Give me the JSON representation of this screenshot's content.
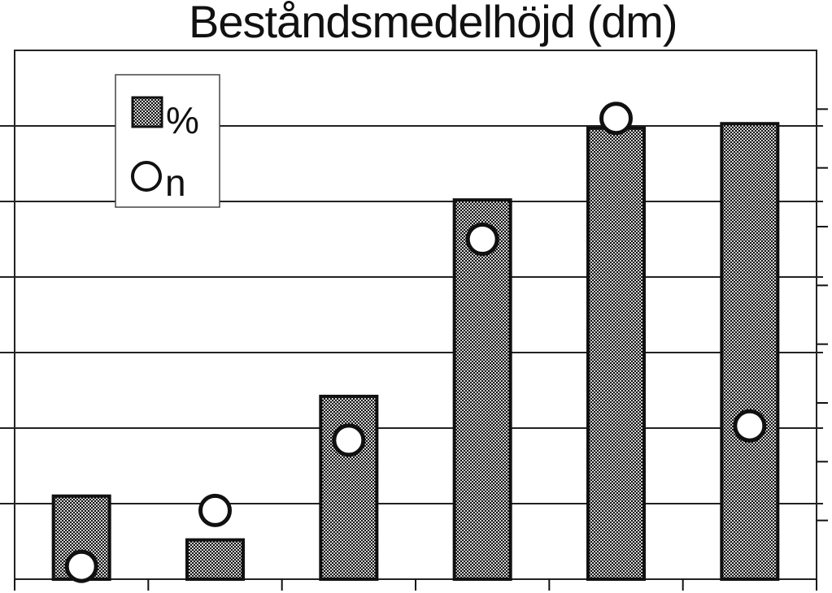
{
  "chart_data": {
    "type": "bar",
    "title": "Beståndsmedelhöjd (dm)",
    "xlabel": "",
    "ylabel": "",
    "categories": [
      "",
      "",
      "",
      "",
      "",
      ""
    ],
    "ylim": [
      0,
      7
    ],
    "grid": true,
    "legend_position": "top-left",
    "series": [
      {
        "name": "%",
        "kind": "bar",
        "values": [
          1.1,
          0.52,
          2.42,
          5.02,
          5.97,
          6.03
        ]
      },
      {
        "name": "n",
        "kind": "marker",
        "values": [
          0.17,
          0.91,
          1.84,
          4.5,
          6.1,
          2.03
        ]
      }
    ],
    "colors": {
      "bar_fill_dark": "#111111",
      "bar_fill_light": "#d2d2d2",
      "marker_fill": "#ffffff",
      "stroke": "#111111",
      "grid": "#222222"
    }
  }
}
